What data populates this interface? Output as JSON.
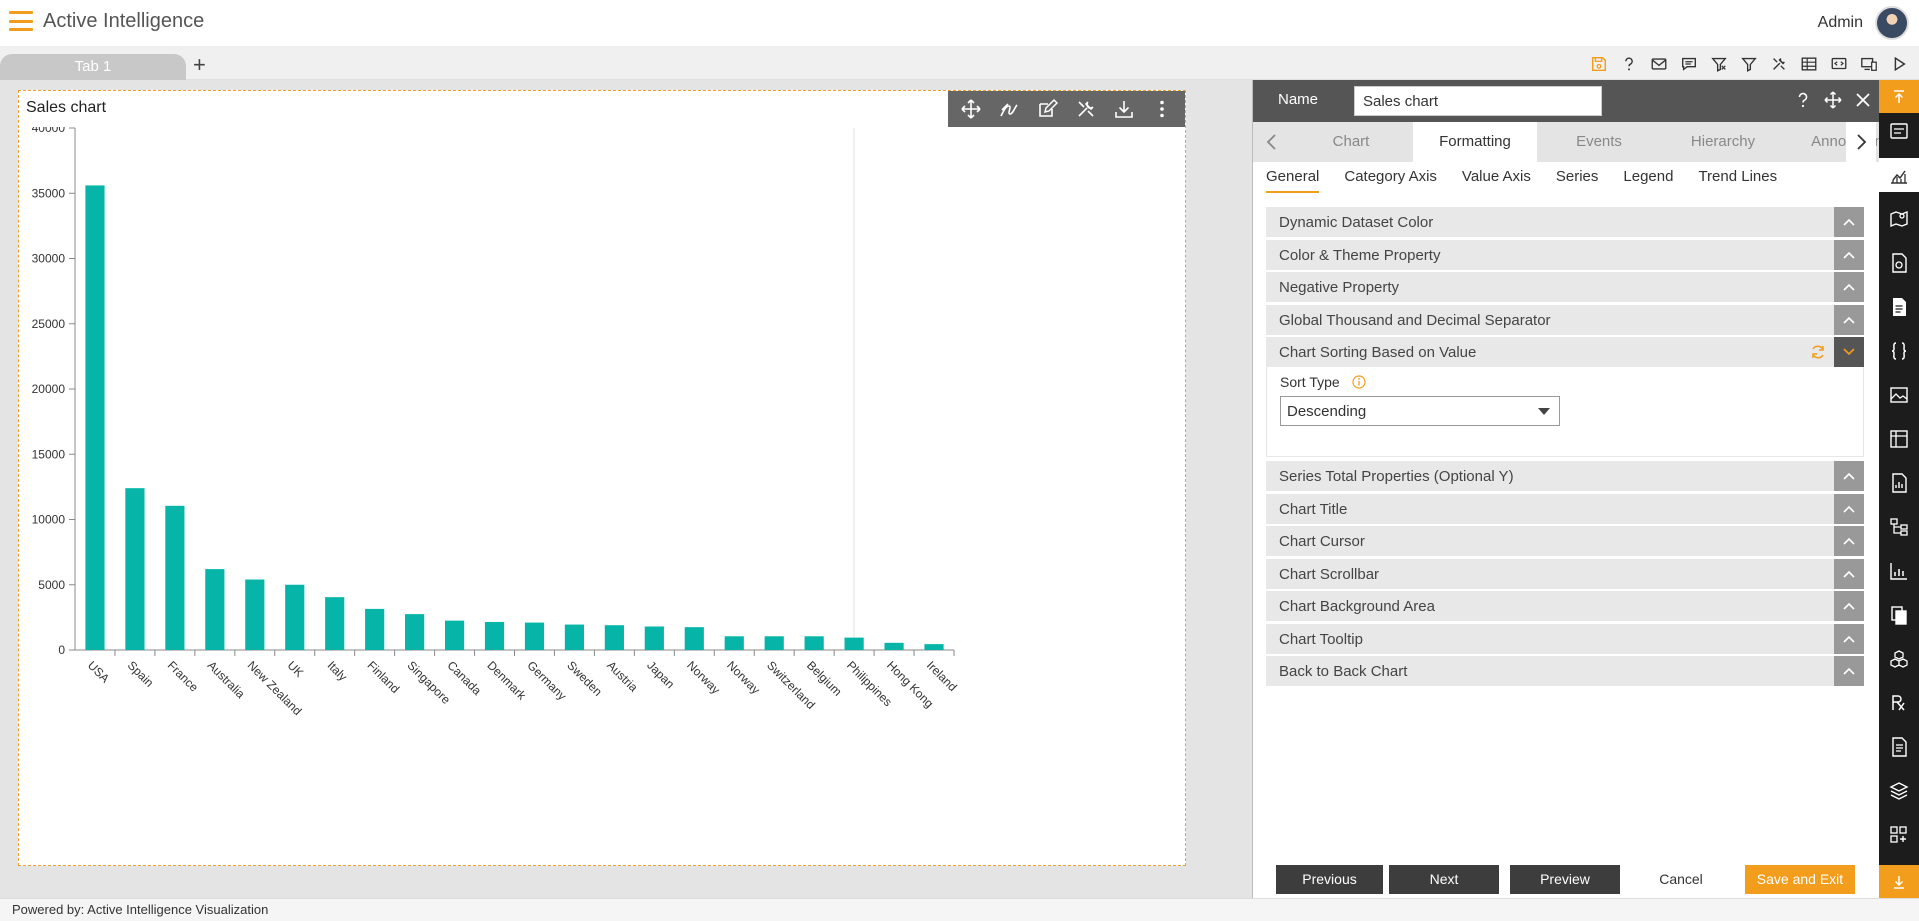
{
  "app": {
    "title": "Active Intelligence",
    "user": "Admin"
  },
  "tabs": [
    {
      "label": "Tab 1"
    }
  ],
  "toolbar": {
    "add_tab_label": "+"
  },
  "widget": {
    "title": "Sales chart"
  },
  "chart_data": {
    "type": "bar",
    "title": "Sales chart",
    "categories": [
      "USA",
      "Spain",
      "France",
      "Australia",
      "New Zealand",
      "UK",
      "Italy",
      "Finland",
      "Singapore",
      "Canada",
      "Denmark",
      "Germany",
      "Sweden",
      "Austria",
      "Japan",
      "Norway",
      "Norway",
      "Switzerland",
      "Belgium",
      "Philippines",
      "Hong Kong",
      "Ireland"
    ],
    "values": [
      35600,
      12400,
      11050,
      6200,
      5400,
      5000,
      4050,
      3150,
      2750,
      2250,
      2150,
      2100,
      1950,
      1900,
      1800,
      1750,
      1050,
      1050,
      1050,
      950,
      550,
      450
    ],
    "ylim": [
      0,
      40000
    ],
    "yticks": [
      0,
      5000,
      10000,
      15000,
      20000,
      25000,
      30000,
      35000,
      40000
    ],
    "bar_color": "#06b5a8",
    "grid": false
  },
  "panel": {
    "name_label": "Name",
    "name_value": "Sales chart",
    "main_tabs": [
      "Chart",
      "Formatting",
      "Events",
      "Hierarchy",
      "Annotation"
    ],
    "active_main_tab": "Formatting",
    "sub_tabs": [
      "General",
      "Category Axis",
      "Value Axis",
      "Series",
      "Legend",
      "Trend Lines"
    ],
    "active_sub_tab": "General",
    "sections": [
      "Dynamic Dataset Color",
      "Color & Theme Property",
      "Negative Property",
      "Global Thousand and Decimal Separator",
      "Chart Sorting Based on Value",
      "Series Total Properties (Optional Y)",
      "Chart Title",
      "Chart Cursor",
      "Chart Scrollbar",
      "Chart Background Area",
      "Chart Tooltip",
      "Back to Back Chart"
    ],
    "sort": {
      "label": "Sort Type",
      "value": "Descending"
    },
    "footer": {
      "previous": "Previous",
      "next": "Next",
      "preview": "Preview",
      "cancel": "Cancel",
      "save_exit": "Save and Exit"
    }
  },
  "status": {
    "text": "Powered by: Active Intelligence Visualization"
  },
  "colors": {
    "accent": "#f29d1b",
    "bar": "#06b5a8",
    "panel_header": "#555555",
    "rail": "#1c1c1c"
  }
}
